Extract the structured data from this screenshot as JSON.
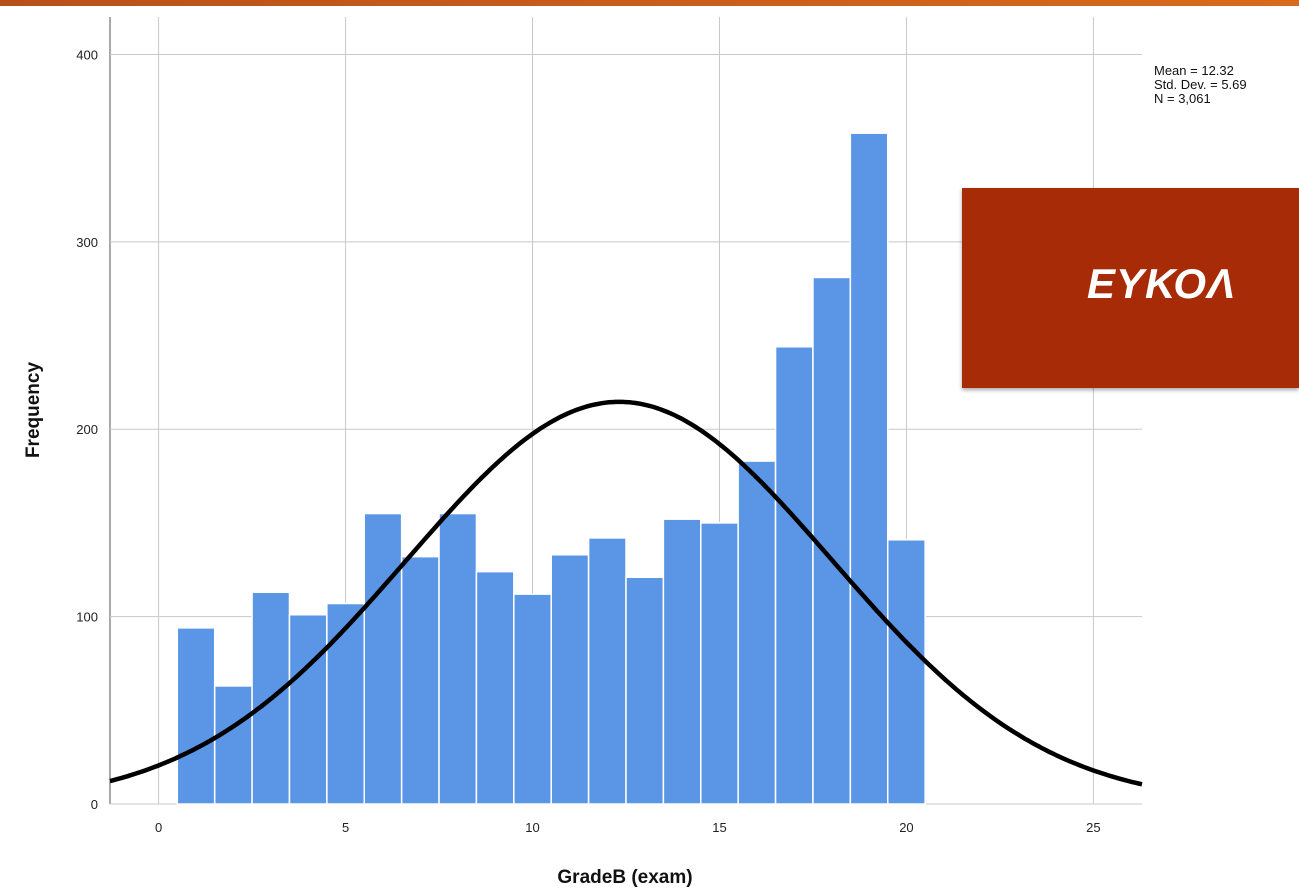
{
  "chart_data": {
    "type": "bar",
    "subtype": "histogram",
    "xlabel": "GradeB (exam)",
    "ylabel": "Frequency",
    "xlim": [
      -1.3,
      26.3
    ],
    "ylim": [
      0,
      420
    ],
    "x_ticks": [
      0,
      5,
      10,
      15,
      20,
      25
    ],
    "y_ticks": [
      0,
      100,
      200,
      300,
      400
    ],
    "grid": true,
    "bin_width": 1,
    "bins": [
      {
        "center": 1,
        "value": 94
      },
      {
        "center": 2,
        "value": 63
      },
      {
        "center": 3,
        "value": 113
      },
      {
        "center": 4,
        "value": 101
      },
      {
        "center": 5,
        "value": 107
      },
      {
        "center": 6,
        "value": 155
      },
      {
        "center": 7,
        "value": 132
      },
      {
        "center": 8,
        "value": 155
      },
      {
        "center": 9,
        "value": 124
      },
      {
        "center": 10,
        "value": 112
      },
      {
        "center": 11,
        "value": 133
      },
      {
        "center": 12,
        "value": 142
      },
      {
        "center": 13,
        "value": 121
      },
      {
        "center": 14,
        "value": 152
      },
      {
        "center": 15,
        "value": 150
      },
      {
        "center": 16,
        "value": 183
      },
      {
        "center": 17,
        "value": 244
      },
      {
        "center": 18,
        "value": 281
      },
      {
        "center": 19,
        "value": 358
      },
      {
        "center": 20,
        "value": 141
      }
    ],
    "normal_curve": {
      "mean": 12.32,
      "std_dev": 5.69,
      "n": 3061
    },
    "stats_lines": [
      "Mean = 12.32",
      "Std. Dev. = 5.69",
      "N = 3,061"
    ],
    "colors": {
      "bar": "#5b95e5",
      "bar_edge": "#ffffff",
      "curve": "#000000",
      "grid": "#c8c8c8"
    }
  },
  "overlay": {
    "text": "ΕΥΚΟΛ",
    "color": "#a72b06"
  },
  "top_bar": {
    "color": "#cf5f1c"
  }
}
